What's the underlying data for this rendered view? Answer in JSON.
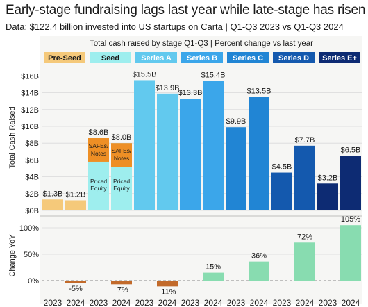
{
  "header": {
    "title": "Early-stage fundraising lags last year while late-stage has risen",
    "subtitle": "Data: $122.4 billion invested into US startups on Carta | Q1-Q3 2023 vs Q1-Q3 2024"
  },
  "chart_data": {
    "type": "bar",
    "title": "Total cash raised by stage Q1-Q3 | Percent change vs last year",
    "years": [
      "2023",
      "2024"
    ],
    "stages": [
      {
        "name": "Pre-Seed",
        "header_color": "#f5c97a",
        "header_text_color": "#1a1a1a",
        "bar_color": "#f5c97a",
        "values": [
          1.3,
          1.2
        ],
        "labels": [
          "$1.3B",
          "$1.2B"
        ],
        "pct_change": -5,
        "pct_label": "-5%"
      },
      {
        "name": "Seed",
        "header_color": "#9eeeee",
        "header_text_color": "#1a1a1a",
        "bar_color": "#9eeeee",
        "values": [
          8.6,
          8.0
        ],
        "labels": [
          "$8.6B",
          "$8.0B"
        ],
        "pct_change": -7,
        "pct_label": "-7%",
        "breakdown": {
          "safes_label": "SAFEs/ Notes",
          "priced_label": "Priced Equity",
          "safes_color": "#ee8f25"
        }
      },
      {
        "name": "Series A",
        "header_color": "#62c9ee",
        "header_text_color": "#ffffff",
        "bar_color": "#62c9ee",
        "values": [
          15.5,
          13.9
        ],
        "labels": [
          "$15.5B",
          "$13.9B"
        ],
        "pct_change": -11,
        "pct_label": "-11%"
      },
      {
        "name": "Series B",
        "header_color": "#3ba6ea",
        "header_text_color": "#ffffff",
        "bar_color": "#3ba6ea",
        "values": [
          13.3,
          15.4
        ],
        "labels": [
          "$13.3B",
          "$15.4B"
        ],
        "pct_change": 15,
        "pct_label": "15%"
      },
      {
        "name": "Series C",
        "header_color": "#2185d4",
        "header_text_color": "#ffffff",
        "bar_color": "#2185d4",
        "values": [
          9.9,
          13.5
        ],
        "labels": [
          "$9.9B",
          "$13.5B"
        ],
        "pct_change": 36,
        "pct_label": "36%"
      },
      {
        "name": "Series D",
        "header_color": "#1459ae",
        "header_text_color": "#ffffff",
        "bar_color": "#1459ae",
        "values": [
          4.5,
          7.7
        ],
        "labels": [
          "$4.5B",
          "$7.7B"
        ],
        "pct_change": 72,
        "pct_label": "72%"
      },
      {
        "name": "Series E+",
        "header_color": "#0d2b73",
        "header_text_color": "#ffffff",
        "bar_color": "#0d2b73",
        "values": [
          3.2,
          6.5
        ],
        "labels": [
          "$3.2B",
          "$6.5B"
        ],
        "pct_change": 105,
        "pct_label": "105%"
      }
    ],
    "top_panel": {
      "ylabel": "Total Cash Raised",
      "ylim": [
        0,
        17
      ],
      "ticks": [
        0,
        2,
        4,
        6,
        8,
        10,
        12,
        14,
        16
      ],
      "tick_labels": [
        "$0B",
        "$2B",
        "$4B",
        "$6B",
        "$8B",
        "$10B",
        "$12B",
        "$14B",
        "$16B"
      ],
      "grid": true
    },
    "bottom_panel": {
      "ylabel": "Change YoY",
      "ylim": [
        -15,
        115
      ],
      "ticks": [
        0,
        50,
        100
      ],
      "tick_labels": [
        "0%",
        "50%",
        "100%"
      ],
      "positive_color": "#88dcb0",
      "negative_color": "#c26a2a",
      "grid": true
    }
  }
}
